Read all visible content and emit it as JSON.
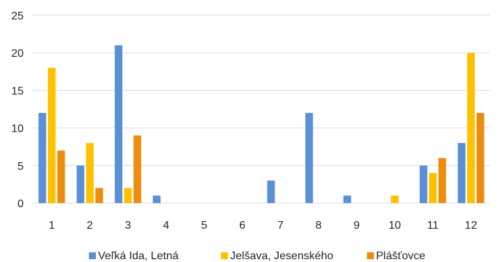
{
  "chart_data": {
    "type": "bar",
    "title": "",
    "xlabel": "",
    "ylabel": "",
    "ylim": [
      0,
      25
    ],
    "yticks": [
      0,
      5,
      10,
      15,
      20,
      25
    ],
    "grid": true,
    "legend_position": "bottom",
    "categories": [
      "1",
      "2",
      "3",
      "4",
      "5",
      "6",
      "7",
      "8",
      "9",
      "10",
      "11",
      "12"
    ],
    "series": [
      {
        "name": "Veľká Ida, Letná",
        "color": "#5b8fd6",
        "values": [
          12,
          5,
          21,
          1,
          0,
          0,
          3,
          12,
          1,
          0,
          5,
          8
        ]
      },
      {
        "name": "Jelšava, Jesenského",
        "color": "#ffc000",
        "values": [
          18,
          8,
          2,
          0,
          0,
          0,
          0,
          0,
          0,
          1,
          4,
          20
        ]
      },
      {
        "name": "Plášťovce",
        "color": "#ed8c0e",
        "values": [
          7,
          2,
          9,
          0,
          0,
          0,
          0,
          0,
          0,
          0,
          6,
          12
        ]
      }
    ]
  }
}
